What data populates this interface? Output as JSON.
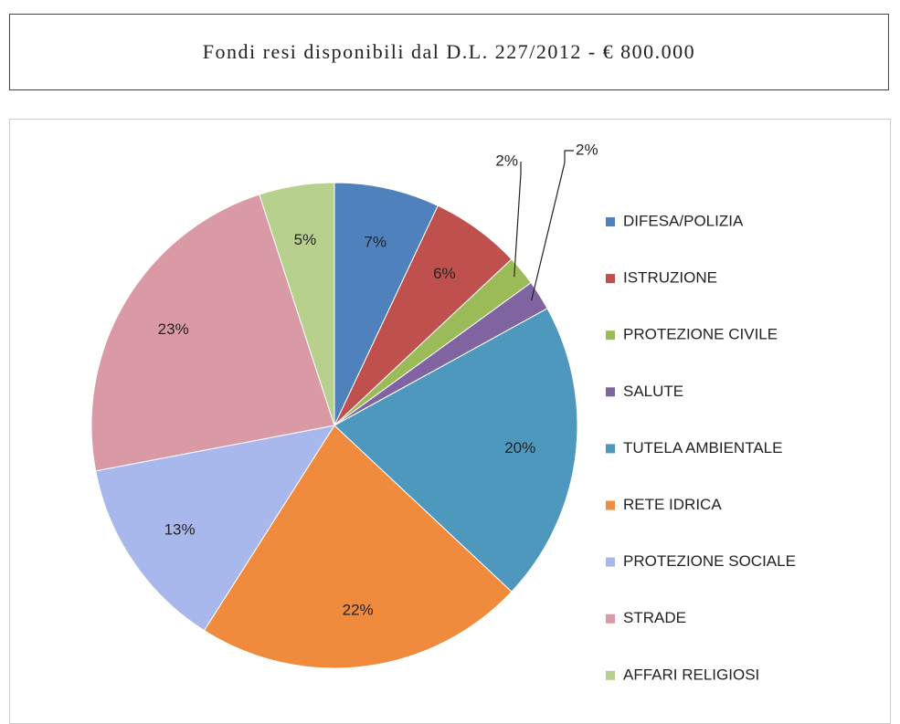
{
  "chart_data": {
    "type": "pie",
    "title": "Fondi resi disponibili dal D.L. 227/2012 -  € 800.000",
    "categories": [
      "DIFESA/POLIZIA",
      "ISTRUZIONE",
      "PROTEZIONE CIVILE",
      "SALUTE",
      "TUTELA AMBIENTALE",
      "RETE IDRICA",
      "PROTEZIONE SOCIALE",
      "STRADE",
      "AFFARI RELIGIOSI"
    ],
    "values": [
      7,
      6,
      2,
      2,
      20,
      22,
      13,
      23,
      5
    ],
    "value_labels": [
      "7%",
      "6%",
      "2%",
      "2%",
      "20%",
      "22%",
      "13%",
      "23%",
      "5%"
    ],
    "colors": [
      "#4f81bd",
      "#c0504d",
      "#9bbb59",
      "#8064a2",
      "#4f98bd",
      "#f08a3c",
      "#a9b8ec",
      "#d99aa6",
      "#b8d08e"
    ],
    "legend": "right"
  }
}
